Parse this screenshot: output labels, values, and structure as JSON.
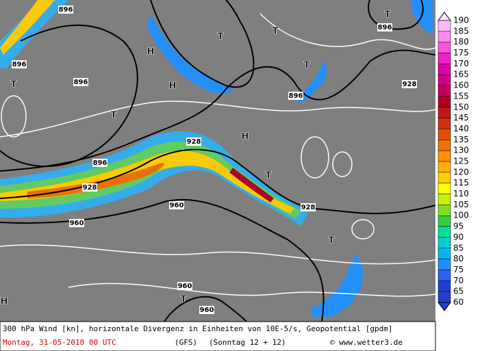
{
  "map": {
    "labels": [
      "896",
      "896",
      "896",
      "896",
      "896",
      "896",
      "928",
      "928",
      "928",
      "928",
      "960",
      "960",
      "960",
      "960",
      "T",
      "T",
      "T",
      "T",
      "T",
      "T",
      "T",
      "T",
      "T",
      "H",
      "H",
      "H",
      "H"
    ]
  },
  "colorbar": {
    "levels": [
      190,
      185,
      180,
      175,
      170,
      165,
      160,
      155,
      150,
      145,
      140,
      135,
      130,
      125,
      120,
      115,
      110,
      105,
      100,
      95,
      90,
      85,
      80,
      75,
      70,
      65,
      60
    ],
    "colors": [
      "#ffe0ff",
      "#ffb8ff",
      "#ff88f0",
      "#ff50e0",
      "#f020c8",
      "#e000a8",
      "#d00088",
      "#c00060",
      "#b00020",
      "#c01818",
      "#d03010",
      "#e05000",
      "#f07000",
      "#ff9000",
      "#ffb000",
      "#ffd000",
      "#ffff00",
      "#c8f000",
      "#80e020",
      "#30d040",
      "#00e0a0",
      "#00d0d0",
      "#00b4f0",
      "#2090ff",
      "#3060f0",
      "#2040d0",
      "#2040d0"
    ]
  },
  "footer": {
    "description": "300 hPa Wind [kn], horizontale Divergenz in Einheiten von 10E-5/s, Geopotential [gpdm]",
    "date": "Montag, 31-05-2010  00 UTC",
    "model": "(GFS)",
    "run": "(Sonntag 12 + 12)",
    "copyright": "© www.wetter3.de"
  }
}
